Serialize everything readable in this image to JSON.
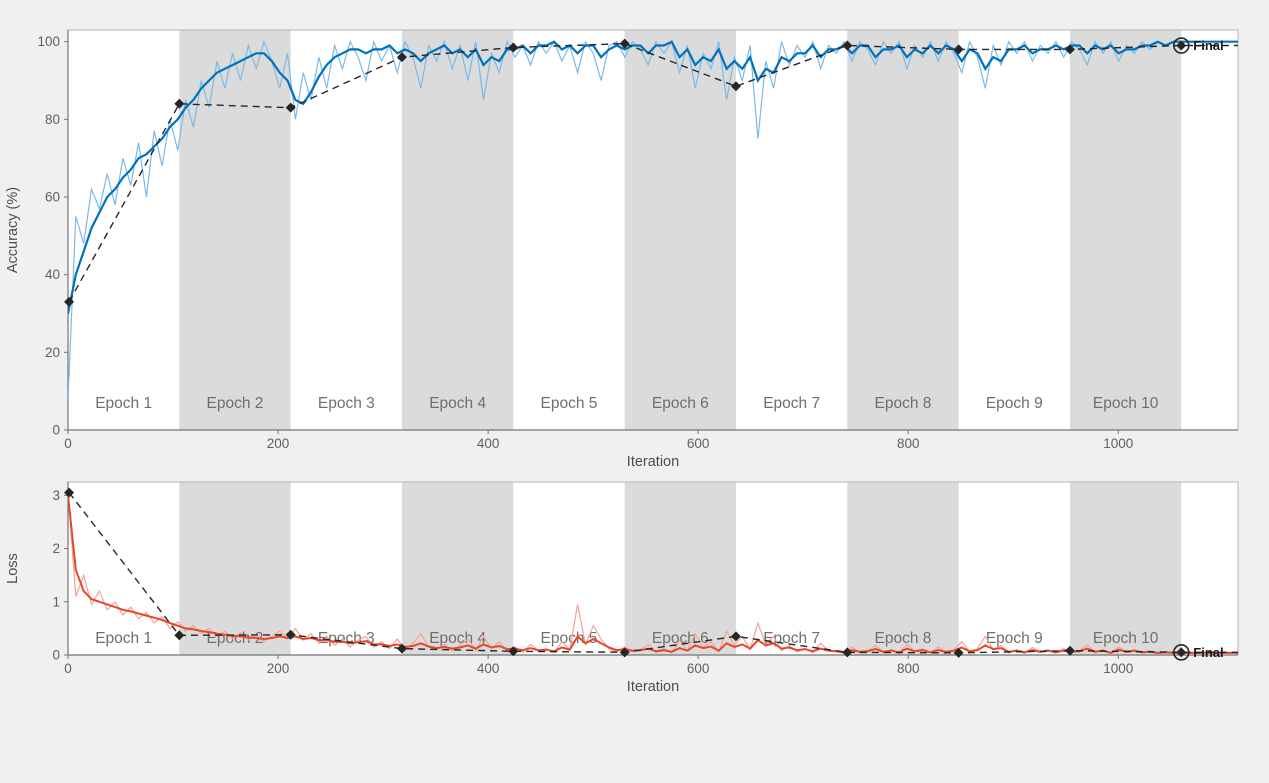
{
  "figure": {
    "background": "#f0f0f1",
    "plot_background": "#ffffff",
    "band_color": "#dbdbdb",
    "border_color": "#b5b5b5",
    "axis_color": "#737373",
    "tick_label_color": "#5f5f5f",
    "axis_label_color": "#4d4d4d",
    "epoch_label_color": "#6e6e6e"
  },
  "chart_data": [
    {
      "id": "accuracy",
      "type": "line",
      "title": "",
      "xlabel": "Iteration",
      "ylabel": "Accuracy (%)",
      "xlim": [
        0,
        1114
      ],
      "ylim": [
        0,
        103
      ],
      "xticks": [
        0,
        200,
        400,
        600,
        800,
        1000
      ],
      "yticks": [
        0,
        20,
        40,
        60,
        80,
        100
      ],
      "grid": false,
      "legend_position": "none",
      "final_label": "Final",
      "epochs": {
        "count": 10,
        "iterations_per_epoch": 106,
        "shaded": "even",
        "labels": [
          "Epoch 1",
          "Epoch 2",
          "Epoch 3",
          "Epoch 4",
          "Epoch 5",
          "Epoch 6",
          "Epoch 7",
          "Epoch 8",
          "Epoch 9",
          "Epoch 10"
        ]
      },
      "series": [
        {
          "name": "training-accuracy-raw",
          "color": "#7cb9e8",
          "width": 1.2,
          "x_start": 0,
          "x_step": 7.465,
          "values": [
            8,
            55,
            48,
            62,
            57,
            66,
            58,
            70,
            63,
            74,
            60,
            77,
            68,
            80,
            72,
            85,
            78,
            90,
            83,
            95,
            88,
            97,
            90,
            99,
            93,
            100,
            95,
            88,
            97,
            80,
            92,
            85,
            96,
            88,
            99,
            93,
            100,
            96,
            90,
            100,
            95,
            99,
            92,
            100,
            96,
            88,
            99,
            95,
            100,
            93,
            99,
            90,
            100,
            85,
            97,
            92,
            100,
            96,
            99,
            94,
            100,
            97,
            100,
            95,
            99,
            92,
            100,
            97,
            90,
            99,
            100,
            96,
            100,
            98,
            94,
            100,
            97,
            100,
            92,
            99,
            88,
            97,
            93,
            100,
            85,
            96,
            90,
            99,
            75,
            95,
            88,
            100,
            94,
            99,
            96,
            100,
            93,
            99,
            97,
            100,
            95,
            100,
            98,
            94,
            100,
            97,
            100,
            93,
            99,
            96,
            100,
            95,
            100,
            97,
            92,
            100,
            96,
            88,
            99,
            94,
            100,
            97,
            100,
            95,
            99,
            97,
            100,
            96,
            100,
            98,
            94,
            100,
            97,
            100,
            95,
            99,
            97,
            100,
            98,
            100,
            99,
            100,
            100
          ]
        },
        {
          "name": "training-accuracy-smoothed",
          "color": "#0072bd",
          "width": 2.2,
          "x_start": 0,
          "x_step": 7.465,
          "values": [
            30,
            40,
            46,
            52,
            56,
            60,
            62,
            65,
            67,
            70,
            71,
            73,
            75,
            78,
            80,
            83,
            85,
            88,
            90,
            92,
            93,
            94,
            95,
            96,
            97,
            97,
            95,
            92,
            90,
            85,
            84,
            87,
            91,
            94,
            96,
            97,
            98,
            98,
            97,
            98,
            98,
            99,
            97,
            98,
            97,
            95,
            97,
            98,
            99,
            97,
            98,
            96,
            98,
            94,
            96,
            95,
            98,
            98,
            99,
            97,
            99,
            99,
            100,
            98,
            99,
            97,
            99,
            99,
            96,
            98,
            99,
            98,
            99,
            99,
            97,
            99,
            99,
            100,
            96,
            98,
            94,
            96,
            95,
            98,
            93,
            95,
            93,
            96,
            90,
            93,
            92,
            96,
            95,
            97,
            97,
            99,
            96,
            98,
            98,
            99,
            97,
            99,
            99,
            96,
            98,
            98,
            99,
            96,
            98,
            97,
            99,
            97,
            99,
            98,
            95,
            98,
            97,
            93,
            96,
            95,
            98,
            98,
            99,
            97,
            98,
            98,
            99,
            98,
            99,
            99,
            97,
            99,
            98,
            99,
            97,
            98,
            98,
            99,
            99,
            100,
            99,
            100,
            100
          ]
        },
        {
          "name": "validation-accuracy",
          "color": "#262626",
          "width": 1.4,
          "dash": "7 5",
          "marker": "diamond",
          "x": [
            1,
            106,
            212,
            318,
            424,
            530,
            636,
            742,
            848,
            954,
            1060
          ],
          "values": [
            33,
            84,
            83,
            96,
            98.5,
            99.5,
            88.5,
            99,
            98,
            98,
            99
          ]
        }
      ]
    },
    {
      "id": "loss",
      "type": "line",
      "title": "",
      "xlabel": "Iteration",
      "ylabel": "Loss",
      "xlim": [
        0,
        1114
      ],
      "ylim": [
        0,
        3.25
      ],
      "xticks": [
        0,
        200,
        400,
        600,
        800,
        1000
      ],
      "yticks": [
        0,
        1,
        2,
        3
      ],
      "grid": false,
      "legend_position": "none",
      "final_label": "Final",
      "epochs": {
        "count": 10,
        "iterations_per_epoch": 106,
        "shaded": "even",
        "labels": [
          "Epoch 1",
          "Epoch 2",
          "Epoch 3",
          "Epoch 4",
          "Epoch 5",
          "Epoch 6",
          "Epoch 7",
          "Epoch 8",
          "Epoch 9",
          "Epoch 10"
        ]
      },
      "series": [
        {
          "name": "training-loss-raw",
          "color": "#f4a493",
          "width": 1.2,
          "x_start": 0,
          "x_step": 7.465,
          "values": [
            3.05,
            1.1,
            1.5,
            0.95,
            1.2,
            0.85,
            1.0,
            0.75,
            0.9,
            0.68,
            0.8,
            0.6,
            0.72,
            0.5,
            0.62,
            0.45,
            0.55,
            0.4,
            0.5,
            0.35,
            0.45,
            0.3,
            0.42,
            0.28,
            0.38,
            0.25,
            0.35,
            0.45,
            0.3,
            0.5,
            0.28,
            0.4,
            0.22,
            0.35,
            0.18,
            0.3,
            0.15,
            0.28,
            0.35,
            0.15,
            0.25,
            0.12,
            0.3,
            0.1,
            0.22,
            0.4,
            0.15,
            0.1,
            0.2,
            0.08,
            0.18,
            0.3,
            0.08,
            0.35,
            0.12,
            0.25,
            0.07,
            0.15,
            0.05,
            0.2,
            0.08,
            0.12,
            0.05,
            0.25,
            0.1,
            0.95,
            0.2,
            0.55,
            0.3,
            0.12,
            0.05,
            0.15,
            0.06,
            0.1,
            0.2,
            0.05,
            0.12,
            0.04,
            0.28,
            0.08,
            0.4,
            0.15,
            0.25,
            0.06,
            0.45,
            0.18,
            0.35,
            0.1,
            0.6,
            0.2,
            0.35,
            0.08,
            0.18,
            0.06,
            0.12,
            0.04,
            0.22,
            0.08,
            0.06,
            0.03,
            0.15,
            0.04,
            0.08,
            0.18,
            0.05,
            0.1,
            0.03,
            0.2,
            0.07,
            0.12,
            0.04,
            0.15,
            0.05,
            0.1,
            0.25,
            0.06,
            0.12,
            0.35,
            0.1,
            0.18,
            0.04,
            0.1,
            0.03,
            0.14,
            0.06,
            0.1,
            0.04,
            0.12,
            0.05,
            0.08,
            0.2,
            0.05,
            0.1,
            0.03,
            0.15,
            0.06,
            0.1,
            0.04,
            0.08,
            0.03,
            0.06,
            0.04,
            0.05
          ]
        },
        {
          "name": "training-loss-smoothed",
          "color": "#e8462b",
          "width": 2.0,
          "x_start": 0,
          "x_step": 7.465,
          "values": [
            3.0,
            1.6,
            1.2,
            1.05,
            1.0,
            0.95,
            0.9,
            0.85,
            0.82,
            0.78,
            0.74,
            0.7,
            0.66,
            0.6,
            0.55,
            0.5,
            0.48,
            0.45,
            0.43,
            0.4,
            0.38,
            0.36,
            0.35,
            0.33,
            0.32,
            0.3,
            0.32,
            0.35,
            0.32,
            0.35,
            0.3,
            0.32,
            0.28,
            0.28,
            0.25,
            0.25,
            0.22,
            0.24,
            0.26,
            0.2,
            0.2,
            0.17,
            0.2,
            0.15,
            0.17,
            0.22,
            0.16,
            0.13,
            0.15,
            0.12,
            0.14,
            0.18,
            0.12,
            0.2,
            0.14,
            0.17,
            0.11,
            0.12,
            0.09,
            0.13,
            0.09,
            0.1,
            0.07,
            0.14,
            0.1,
            0.35,
            0.22,
            0.3,
            0.22,
            0.14,
            0.09,
            0.11,
            0.08,
            0.09,
            0.12,
            0.07,
            0.09,
            0.06,
            0.13,
            0.08,
            0.18,
            0.13,
            0.16,
            0.08,
            0.22,
            0.15,
            0.2,
            0.12,
            0.28,
            0.18,
            0.22,
            0.12,
            0.14,
            0.09,
            0.11,
            0.07,
            0.12,
            0.08,
            0.07,
            0.05,
            0.09,
            0.06,
            0.07,
            0.11,
            0.06,
            0.08,
            0.05,
            0.12,
            0.07,
            0.09,
            0.05,
            0.09,
            0.06,
            0.08,
            0.14,
            0.07,
            0.09,
            0.18,
            0.11,
            0.13,
            0.06,
            0.08,
            0.05,
            0.09,
            0.06,
            0.08,
            0.05,
            0.08,
            0.06,
            0.07,
            0.12,
            0.06,
            0.08,
            0.04,
            0.1,
            0.06,
            0.08,
            0.05,
            0.06,
            0.04,
            0.05,
            0.04,
            0.04
          ]
        },
        {
          "name": "validation-loss",
          "color": "#262626",
          "width": 1.4,
          "dash": "7 5",
          "marker": "diamond",
          "x": [
            1,
            106,
            212,
            318,
            424,
            530,
            636,
            742,
            848,
            954,
            1060
          ],
          "values": [
            3.05,
            0.37,
            0.38,
            0.12,
            0.07,
            0.05,
            0.35,
            0.05,
            0.04,
            0.08,
            0.05
          ]
        }
      ]
    }
  ]
}
